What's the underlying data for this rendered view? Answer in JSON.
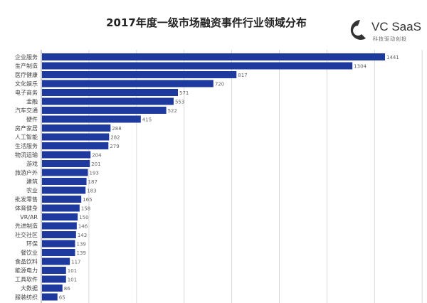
{
  "chart_data": {
    "type": "bar",
    "orientation": "horizontal",
    "title": "2017年度一级市场融资事件行业领域分布",
    "categories": [
      "企业服务",
      "生产制造",
      "医疗健康",
      "文化娱乐",
      "电子商务",
      "金融",
      "汽车交通",
      "硬件",
      "房产家居",
      "人工智能",
      "生活服务",
      "物流运输",
      "游戏",
      "旅游户外",
      "建筑",
      "农业",
      "批发零售",
      "体育健身",
      "VR/AR",
      "先进制造",
      "社交社区",
      "环保",
      "餐饮业",
      "食品饮料",
      "能源电力",
      "工具软件",
      "大数据",
      "服装纺织"
    ],
    "values": [
      1441,
      1304,
      817,
      720,
      571,
      553,
      522,
      415,
      288,
      282,
      279,
      204,
      201,
      193,
      187,
      183,
      165,
      158,
      150,
      146,
      143,
      139,
      139,
      117,
      101,
      101,
      86,
      65
    ],
    "xlim": [
      0,
      1600
    ],
    "grid": true,
    "bar_color": "#1f3a9e"
  },
  "logo": {
    "name": "VC SaaS",
    "tagline": "科技驱动创投"
  }
}
